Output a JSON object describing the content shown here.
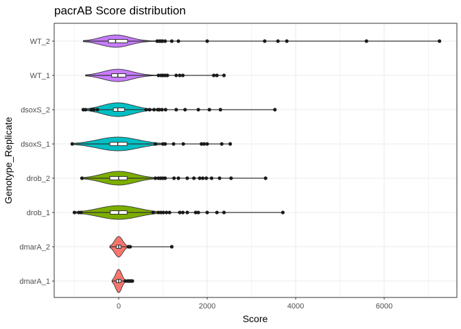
{
  "chart_data": {
    "type": "violin",
    "title": "pacrAB Score distribution",
    "xlabel": "Score",
    "ylabel": "Genotype_Replicate",
    "xlim": [
      -1050,
      7500
    ],
    "x_ticks": [
      0,
      2000,
      4000,
      6000
    ],
    "x_tick_labels": [
      "0",
      "2000",
      "4000",
      "6000"
    ],
    "grid": true,
    "theme": "bw",
    "legend": "none",
    "categories": [
      "WT_2",
      "WT_1",
      "dsoxS_2",
      "dsoxS_1",
      "drob_2",
      "drob_1",
      "dmarA_2",
      "dmarA_1"
    ],
    "series": [
      {
        "category": "WT_2",
        "color": "#C77CFF",
        "min": -800,
        "q1": -230,
        "median": -70,
        "q3": 200,
        "max": 7250,
        "violin_range": [
          -800,
          1000
        ],
        "violin_max_half_width": 9,
        "outliers": [
          870,
          920,
          960,
          990,
          1050,
          1200,
          1350,
          2000,
          3300,
          3600,
          3800,
          5600,
          7250
        ]
      },
      {
        "category": "WT_1",
        "color": "#C77CFF",
        "min": -750,
        "q1": -160,
        "median": -20,
        "q3": 160,
        "max": 2380,
        "violin_range": [
          -750,
          1000
        ],
        "violin_max_half_width": 9,
        "outliers": [
          900,
          960,
          1000,
          1050,
          1100,
          1300,
          1380,
          1450,
          2150,
          2220,
          2380
        ]
      },
      {
        "category": "dsoxS_2",
        "color": "#00BFC4",
        "min": -800,
        "q1": -120,
        "median": -20,
        "q3": 130,
        "max": 3530,
        "violin_range": [
          -800,
          900
        ],
        "violin_max_half_width": 10,
        "outliers": [
          -800,
          -750,
          -620,
          -560,
          -480,
          620,
          700,
          800,
          880,
          920,
          980,
          1060,
          1300,
          1500,
          1800,
          2050,
          2300,
          3530
        ]
      },
      {
        "category": "dsoxS_1",
        "color": "#00BFC4",
        "min": -1050,
        "q1": -200,
        "median": -20,
        "q3": 190,
        "max": 2520,
        "violin_range": [
          -1050,
          1000
        ],
        "violin_max_half_width": 10,
        "outliers": [
          -1050,
          830,
          1000,
          1050,
          1240,
          1460,
          1870,
          1930,
          2000,
          2330,
          2520
        ]
      },
      {
        "category": "drob_2",
        "color": "#7CAE00",
        "min": -830,
        "q1": -200,
        "median": 0,
        "q3": 190,
        "max": 3320,
        "violin_range": [
          -830,
          1000
        ],
        "violin_max_half_width": 10,
        "outliers": [
          -830,
          830,
          900,
          950,
          1000,
          1050,
          1250,
          1350,
          1550,
          1700,
          1830,
          1900,
          1980,
          2100,
          2280,
          2540,
          3320
        ]
      },
      {
        "category": "drob_1",
        "color": "#7CAE00",
        "min": -1000,
        "q1": -190,
        "median": 0,
        "q3": 190,
        "max": 3710,
        "violin_range": [
          -1000,
          1000
        ],
        "violin_max_half_width": 10,
        "outliers": [
          -1000,
          -900,
          -850,
          780,
          900,
          960,
          1010,
          1080,
          1150,
          1380,
          1450,
          1550,
          1740,
          1800,
          2000,
          2220,
          2380,
          3710
        ]
      },
      {
        "category": "dmarA_2",
        "color": "#F8766D",
        "min": -200,
        "q1": -50,
        "median": 0,
        "q3": 50,
        "max": 1200,
        "violin_range": [
          -200,
          280
        ],
        "violin_max_half_width": 15,
        "outliers": [
          220,
          260,
          1200
        ]
      },
      {
        "category": "dmarA_1",
        "color": "#F8766D",
        "min": -150,
        "q1": -50,
        "median": 0,
        "q3": 50,
        "max": 310,
        "violin_range": [
          -150,
          310
        ],
        "violin_max_half_width": 17,
        "outliers": [
          150,
          200,
          230,
          260,
          280,
          310
        ]
      }
    ]
  }
}
